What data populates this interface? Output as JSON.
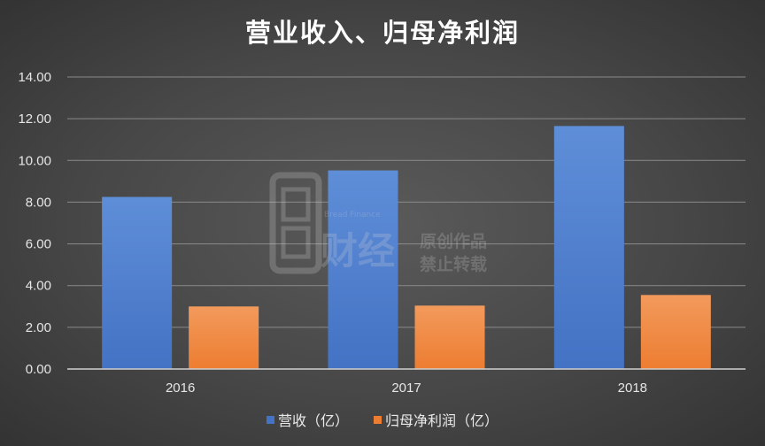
{
  "chart_data": {
    "type": "bar",
    "title": "营业收入、归母净利润",
    "categories": [
      "2016",
      "2017",
      "2018"
    ],
    "series": [
      {
        "name": "营收（亿）",
        "values": [
          8.25,
          9.52,
          11.65
        ],
        "color": "#4472c4"
      },
      {
        "name": "归母净利润（亿）",
        "values": [
          3.0,
          3.04,
          3.55
        ],
        "color": "#ed7d31"
      }
    ],
    "ylim": [
      0,
      14
    ],
    "yticks": [
      "0.00",
      "2.00",
      "4.00",
      "6.00",
      "8.00",
      "10.00",
      "12.00",
      "14.00"
    ],
    "grid": true,
    "legend_position": "bottom",
    "xlabel": "",
    "ylabel": ""
  },
  "watermark": {
    "brand_en": "Bread Finance",
    "brand_cn": "财经",
    "line1": "原创作品",
    "line2": "禁止转载"
  }
}
